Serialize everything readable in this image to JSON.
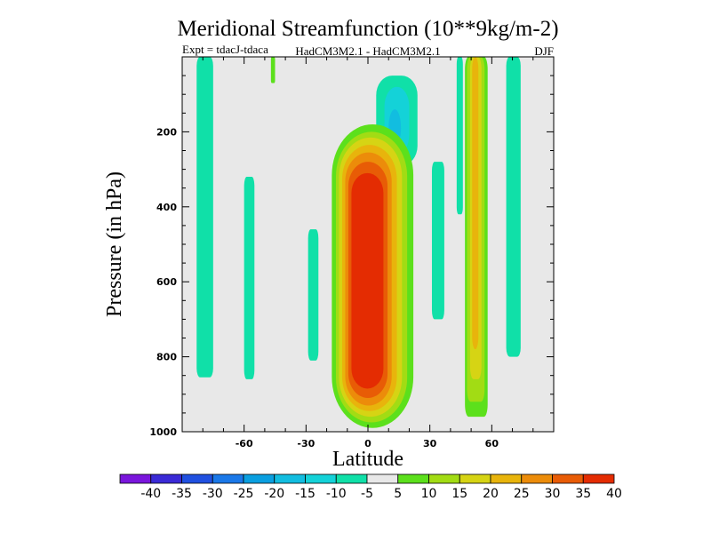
{
  "chart_data": {
    "type": "contour",
    "title": "Meridional Streamfunction (10**9kg/m-2)",
    "subtitle_left": "Expt = tdacJ-tdaca",
    "subtitle_center": "HadCM3M2.1 - HadCM3M2.1",
    "subtitle_right": "DJF",
    "xlabel": "Latitude",
    "ylabel": "Pressure (in hPa)",
    "xlim": [
      -90,
      90
    ],
    "ylim": [
      1000,
      0
    ],
    "x_ticks": [
      -60,
      -30,
      0,
      30,
      60
    ],
    "y_ticks": [
      200,
      400,
      600,
      800,
      1000
    ],
    "background_color": "#e8e8e8",
    "colorbar": {
      "levels": [
        "-40",
        "-35",
        "-30",
        "-25",
        "-20",
        "-15",
        "-10",
        "-5",
        "5",
        "10",
        "15",
        "20",
        "25",
        "30",
        "35",
        "40"
      ],
      "colors": [
        "#7a16dc",
        "#3a2ad6",
        "#2050e0",
        "#1a78e8",
        "#0a9fe0",
        "#12bde0",
        "#14d2d8",
        "#10e0a8",
        "#e8e8e8",
        "#5ce01c",
        "#a2dc14",
        "#d6d414",
        "#e8b40c",
        "#ec8c0a",
        "#e85c06",
        "#e42c02"
      ]
    },
    "contour_levels": [
      5,
      10,
      15,
      20,
      25,
      30,
      35,
      40,
      -5,
      -10,
      -15
    ],
    "features": [
      {
        "name": "main-positive-cell",
        "lat_center": 0,
        "lat_min": -17,
        "lat_max": 22,
        "p_top": 180,
        "p_bottom": 990,
        "peak_value": 40
      },
      {
        "name": "negative-upper-cell",
        "lat_center": 12,
        "p_center": 200,
        "peak_value": -15
      },
      {
        "name": "nh-positive-band",
        "lat_center": 52,
        "p_top": 0,
        "p_bottom": 960,
        "peak_value": 20
      },
      {
        "name": "sh-negative-bands",
        "lat_centers": [
          -79,
          -58,
          -27
        ],
        "peak_value": -5
      },
      {
        "name": "nh-negative-bands",
        "lat_centers": [
          35,
          70
        ],
        "peak_value": -5
      }
    ]
  }
}
